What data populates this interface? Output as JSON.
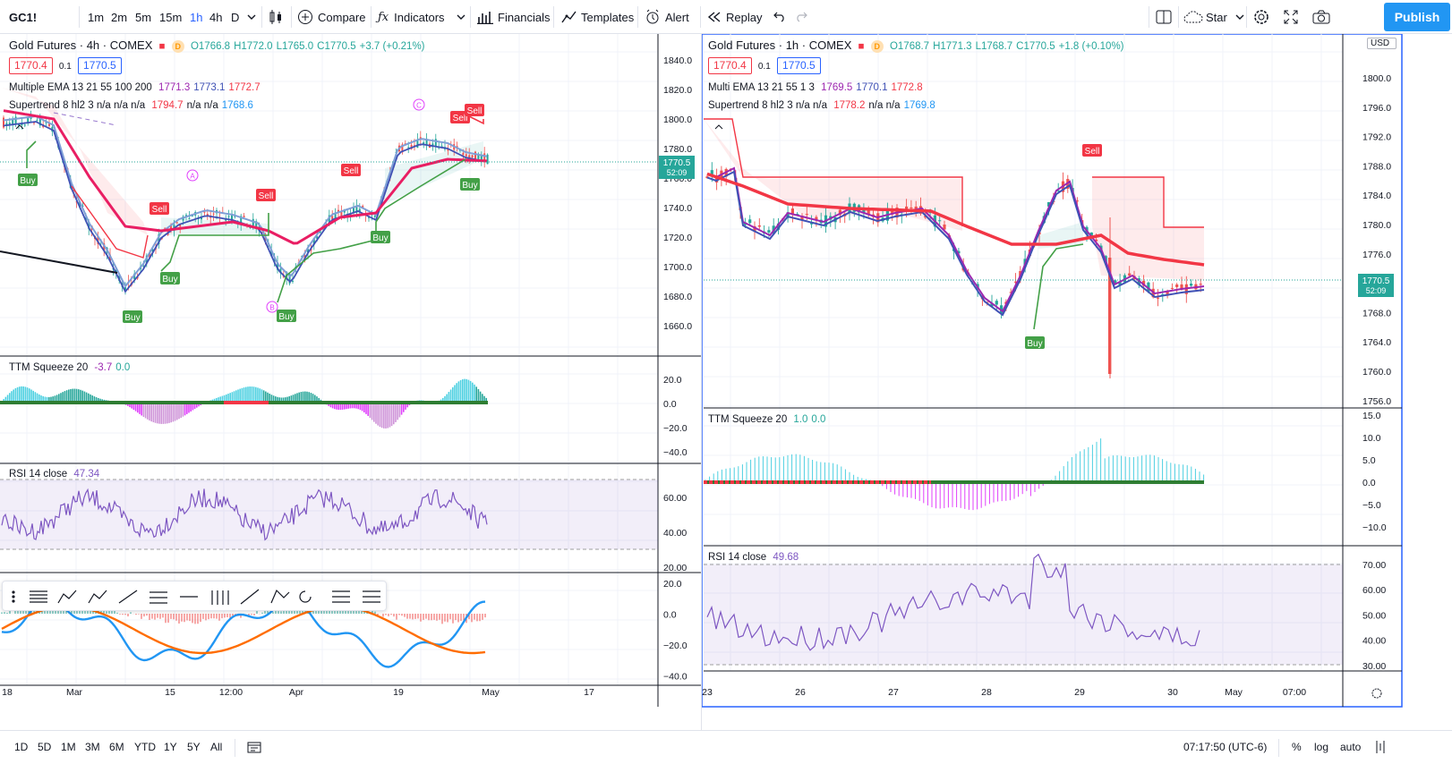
{
  "toolbar": {
    "symbol": "GC1!",
    "intervals": [
      "1m",
      "2m",
      "5m",
      "15m",
      "1h",
      "4h",
      "D"
    ],
    "active_interval": "1h",
    "compare": "Compare",
    "indicators": "Indicators",
    "financials": "Financials",
    "templates": "Templates",
    "alert": "Alert",
    "replay": "Replay",
    "star": "Star",
    "publish": "Publish"
  },
  "left": {
    "title": "Gold Futures · 4h · COMEX",
    "ohlc": {
      "o": "O1766.8",
      "h": "H1772.0",
      "l": "L1765.0",
      "c": "C1770.5",
      "chg": "+3.7 (+0.21%)"
    },
    "bid": "1770.4",
    "spread": "0.1",
    "ask": "1770.5",
    "ema_label": "Multiple EMA 13 21 55 100 200",
    "ema_vals": [
      "1771.3",
      "1773.1",
      "1772.7"
    ],
    "st_label": "Supertrend 8 hl2 3  n/a  n/a  n/a",
    "st_vals": [
      "1794.7",
      "n/a  n/a",
      "1768.6"
    ],
    "price_ticks": [
      "1840.0",
      "1820.0",
      "1800.0",
      "1780.0",
      "1760.0",
      "1740.0",
      "1720.0",
      "1700.0",
      "1680.0",
      "1660.0"
    ],
    "price_tag": "1770.5",
    "countdown": "52:09",
    "ttm_label": "TTM Squeeze 20",
    "ttm_vals": [
      "-3.7",
      "0.0"
    ],
    "ttm_ticks": [
      "20.0",
      "0.0",
      "−20.0",
      "−40.0"
    ],
    "rsi_label": "RSI 14 close",
    "rsi_val": "47.34",
    "rsi_ticks": [
      "60.00",
      "40.00",
      "20.00"
    ],
    "osc_ticks": [
      "20.0",
      "0.0",
      "−20.0",
      "−40.0"
    ],
    "time_ticks": [
      "18",
      "Mar",
      "15",
      "12:00",
      "Apr",
      "19",
      "May",
      "17"
    ],
    "signals": [
      "Buy",
      "Sell",
      "Buy",
      "Buy",
      "Sell",
      "Buy",
      "Sell",
      "Buy",
      "Buy",
      "Sell",
      "Sell"
    ],
    "markers": [
      "A",
      "B",
      "C"
    ]
  },
  "right": {
    "title": "Gold Futures · 1h · COMEX",
    "ohlc": {
      "o": "O1768.7",
      "h": "H1771.3",
      "l": "L1768.7",
      "c": "C1770.5",
      "chg": "+1.8 (+0.10%)"
    },
    "bid": "1770.4",
    "spread": "0.1",
    "ask": "1770.5",
    "ema_label": "Multi EMA 13 21 55 1 3",
    "ema_vals": [
      "1769.5",
      "1770.1",
      "1772.8"
    ],
    "st_label": "Supertrend 8 hl2 3  n/a  n/a",
    "st_vals": [
      "1778.2",
      "n/a  n/a",
      "1769.8"
    ],
    "currency": "USD",
    "price_ticks": [
      "1800.0",
      "1796.0",
      "1792.0",
      "1788.0",
      "1784.0",
      "1780.0",
      "1776.0",
      "1772.0",
      "1768.0",
      "1764.0",
      "1760.0",
      "1756.0"
    ],
    "price_tag": "1770.5",
    "countdown": "52:09",
    "ttm_label": "TTM Squeeze 20",
    "ttm_vals": [
      "1.0",
      "0.0"
    ],
    "ttm_ticks": [
      "15.0",
      "10.0",
      "5.0",
      "0.0",
      "−5.0",
      "−10.0"
    ],
    "rsi_label": "RSI 14 close",
    "rsi_val": "49.68",
    "rsi_ticks": [
      "70.00",
      "60.00",
      "50.00",
      "40.00",
      "30.00"
    ],
    "time_ticks": [
      "23",
      "26",
      "27",
      "28",
      "29",
      "30",
      "May",
      "07:00"
    ],
    "signals": [
      "Sell",
      "Buy"
    ]
  },
  "bottom": {
    "ranges": [
      "1D",
      "5D",
      "1M",
      "3M",
      "6M",
      "YTD",
      "1Y",
      "5Y",
      "All"
    ],
    "clock": "07:17:50 (UTC-6)",
    "percent": "%",
    "log": "log",
    "auto": "auto"
  },
  "colors": {
    "accent": "#2962ff",
    "up": "#26a69a",
    "down": "#ef5350",
    "ema_red": "#f23645",
    "ema_blue": "#3f51b5",
    "ema_purple": "#9c27b0",
    "rsi": "#7e57c2",
    "ttm_cyan": "#4dd0e1",
    "ttm_magenta": "#e040fb",
    "publish": "#2196f3"
  }
}
